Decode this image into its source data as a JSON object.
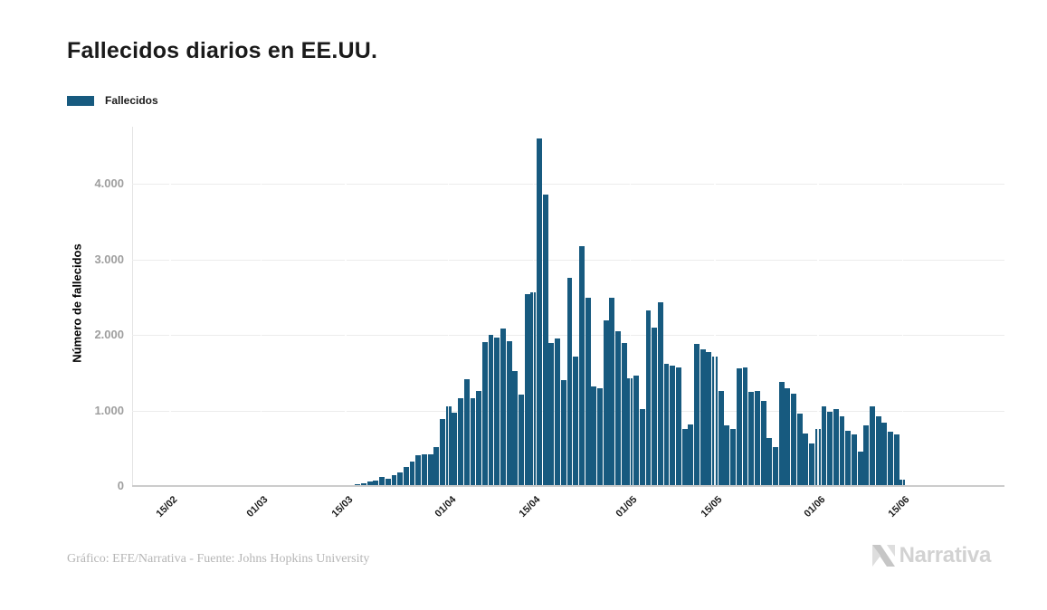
{
  "title": "Fallecidos diarios en EE.UU.",
  "legend": {
    "label": "Fallecidos",
    "color": "#175a7f"
  },
  "footer": "Gráfico: EFE/Narrativa - Fuente: Johns Hopkins University",
  "logo": {
    "text": "Narrativa"
  },
  "chart_data": {
    "type": "bar",
    "title": "Fallecidos diarios en EE.UU.",
    "xlabel": "",
    "ylabel": "Número de fallecidos",
    "series_name": "Fallecidos",
    "bar_color": "#175a7f",
    "grid": true,
    "legend_position": "top-left",
    "ylim": [
      0,
      4760
    ],
    "y_ticks": [
      {
        "value": 0,
        "label": "0"
      },
      {
        "value": 1000,
        "label": "1.000"
      },
      {
        "value": 2000,
        "label": "2.000"
      },
      {
        "value": 3000,
        "label": "3.000"
      },
      {
        "value": 4000,
        "label": "4.000"
      }
    ],
    "x_ticks": [
      {
        "label": "15/02",
        "day": 0
      },
      {
        "label": "01/03",
        "day": 15
      },
      {
        "label": "15/03",
        "day": 29
      },
      {
        "label": "01/04",
        "day": 46
      },
      {
        "label": "15/04",
        "day": 60
      },
      {
        "label": "01/05",
        "day": 76
      },
      {
        "label": "15/05",
        "day": 90
      },
      {
        "label": "01/06",
        "day": 107
      },
      {
        "label": "15/06",
        "day": 121
      }
    ],
    "x_range": [
      "15/02",
      "15/06"
    ],
    "values": [
      0,
      0,
      0,
      0,
      0,
      0,
      0,
      0,
      0,
      0,
      0,
      0,
      0,
      0,
      1,
      1,
      5,
      2,
      3,
      1,
      3,
      2,
      3,
      4,
      4,
      8,
      3,
      8,
      10,
      11,
      18,
      23,
      41,
      57,
      70,
      115,
      95,
      150,
      185,
      250,
      325,
      405,
      425,
      415,
      515,
      890,
      1050,
      970,
      1165,
      1410,
      1165,
      1255,
      1910,
      2000,
      1970,
      2090,
      1920,
      1520,
      1210,
      2540,
      2570,
      4600,
      3860,
      1890,
      1960,
      1400,
      2760,
      1720,
      3180,
      2490,
      1320,
      1290,
      2200,
      2500,
      2050,
      1890,
      1430,
      1460,
      1020,
      2330,
      2100,
      2440,
      1620,
      1600,
      1570,
      760,
      820,
      1880,
      1810,
      1770,
      1710,
      1260,
      800,
      760,
      1560,
      1570,
      1250,
      1260,
      1130,
      640,
      520,
      1380,
      1290,
      1220,
      960,
      690,
      560,
      760,
      1060,
      980,
      1020,
      920,
      730,
      680,
      450,
      800,
      1060,
      920,
      840,
      720,
      680,
      80
    ]
  }
}
